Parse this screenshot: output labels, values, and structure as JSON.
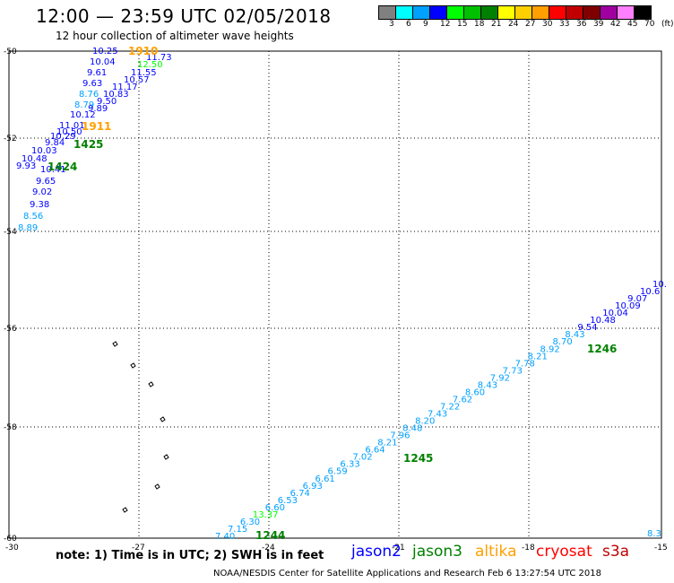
{
  "header": {
    "title": "12:00 — 23:59 UTC 02/05/2018",
    "subtitle": "12 hour collection of altimeter wave heights"
  },
  "legend": {
    "colors": [
      "#808080",
      "#00ffff",
      "#00a0ff",
      "#0000ff",
      "#00ff00",
      "#00c000",
      "#008000",
      "#ffff00",
      "#ffd000",
      "#ffa000",
      "#ff0000",
      "#c00000",
      "#800000",
      "#a000a0",
      "#ff80ff",
      "#000000"
    ],
    "labels": [
      "3",
      "6",
      "9",
      "12",
      "15",
      "18",
      "21",
      "24",
      "27",
      "30",
      "33",
      "36",
      "39",
      "42",
      "45",
      "70",
      "(ft)"
    ]
  },
  "axes": {
    "lat_labels": [
      "-50",
      "-52",
      "-54",
      "-56",
      "-58",
      "-60"
    ],
    "lon_labels": [
      "-30",
      "-27",
      "-24",
      "-21",
      "-18",
      "-15"
    ]
  },
  "tracks": {
    "northwest": [
      {
        "t": "10.25",
        "c": "#0000ff"
      },
      {
        "t": "10.04",
        "c": "#0000ff"
      },
      {
        "t": "9.61",
        "c": "#0000ff"
      },
      {
        "t": "9.63",
        "c": "#0000ff"
      },
      {
        "t": "8.76",
        "c": "#00a0ff"
      },
      {
        "t": "8.79",
        "c": "#00a0ff"
      },
      {
        "t": "10.12",
        "c": "#0000ff"
      },
      {
        "t": "11.01",
        "c": "#0000ff"
      },
      {
        "t": "10.50",
        "c": "#0000ff"
      },
      {
        "t": "10.29",
        "c": "#0000ff"
      },
      {
        "t": "9.84",
        "c": "#0000ff"
      },
      {
        "t": "10.03",
        "c": "#0000ff"
      },
      {
        "t": "10.48",
        "c": "#0000ff"
      },
      {
        "t": "9.93",
        "c": "#0000ff"
      },
      {
        "t": "10.41",
        "c": "#0000ff"
      },
      {
        "t": "9.65",
        "c": "#0000ff"
      },
      {
        "t": "9.02",
        "c": "#0000ff"
      },
      {
        "t": "9.38",
        "c": "#0000ff"
      },
      {
        "t": "8.56",
        "c": "#00a0ff"
      },
      {
        "t": "8.89",
        "c": "#00a0ff"
      }
    ],
    "northwest_right": [
      {
        "t": "11.73",
        "c": "#0000ff"
      },
      {
        "t": "12.50",
        "c": "#00ff00"
      },
      {
        "t": "11.55",
        "c": "#0000ff"
      },
      {
        "t": "10.57",
        "c": "#0000ff"
      },
      {
        "t": "11.17",
        "c": "#0000ff"
      },
      {
        "t": "10.83",
        "c": "#0000ff"
      },
      {
        "t": "9.50",
        "c": "#0000ff"
      },
      {
        "t": "9.89",
        "c": "#0000ff"
      }
    ],
    "southeast": [
      {
        "t": "7.40",
        "c": "#00a0ff"
      },
      {
        "t": "7.15",
        "c": "#00a0ff"
      },
      {
        "t": "6.30",
        "c": "#00a0ff"
      },
      {
        "t": "13.37",
        "c": "#00ff00"
      },
      {
        "t": "6.60",
        "c": "#00a0ff"
      },
      {
        "t": "6.53",
        "c": "#00a0ff"
      },
      {
        "t": "6.74",
        "c": "#00a0ff"
      },
      {
        "t": "6.93",
        "c": "#00a0ff"
      },
      {
        "t": "6.61",
        "c": "#00a0ff"
      },
      {
        "t": "6.59",
        "c": "#00a0ff"
      },
      {
        "t": "6.33",
        "c": "#00a0ff"
      },
      {
        "t": "7.02",
        "c": "#00a0ff"
      },
      {
        "t": "6.64",
        "c": "#00a0ff"
      },
      {
        "t": "8.21",
        "c": "#00a0ff"
      },
      {
        "t": "7.96",
        "c": "#00a0ff"
      },
      {
        "t": "8.48",
        "c": "#00a0ff"
      },
      {
        "t": "8.20",
        "c": "#00a0ff"
      },
      {
        "t": "7.43",
        "c": "#00a0ff"
      },
      {
        "t": "7.22",
        "c": "#00a0ff"
      },
      {
        "t": "7.62",
        "c": "#00a0ff"
      },
      {
        "t": "8.60",
        "c": "#00a0ff"
      },
      {
        "t": "8.43",
        "c": "#00a0ff"
      },
      {
        "t": "7.92",
        "c": "#00a0ff"
      },
      {
        "t": "7.73",
        "c": "#00a0ff"
      },
      {
        "t": "7.78",
        "c": "#00a0ff"
      },
      {
        "t": "8.21",
        "c": "#00a0ff"
      },
      {
        "t": "8.92",
        "c": "#00a0ff"
      },
      {
        "t": "8.70",
        "c": "#00a0ff"
      },
      {
        "t": "8.43",
        "c": "#00a0ff"
      },
      {
        "t": "9.54",
        "c": "#0000ff"
      },
      {
        "t": "10.48",
        "c": "#0000ff"
      },
      {
        "t": "10.04",
        "c": "#0000ff"
      },
      {
        "t": "10.09",
        "c": "#0000ff"
      },
      {
        "t": "9.07",
        "c": "#0000ff"
      },
      {
        "t": "10.6",
        "c": "#0000ff"
      },
      {
        "t": "10.",
        "c": "#0000ff"
      }
    ],
    "east_edge": {
      "t": "8.3",
      "c": "#00a0ff"
    },
    "times": [
      {
        "t": "1910",
        "c": "#ffa000"
      },
      {
        "t": "1911",
        "c": "#ffa000"
      },
      {
        "t": "1425",
        "c": "#008000"
      },
      {
        "t": "1424",
        "c": "#008000"
      },
      {
        "t": "1246",
        "c": "#008000"
      },
      {
        "t": "1245",
        "c": "#008000"
      },
      {
        "t": "1244",
        "c": "#008000"
      }
    ]
  },
  "footer": {
    "note": "note:  1) Time is in UTC;  2) SWH is in feet",
    "satellites": [
      {
        "name": "jason2",
        "color": "#0000ff"
      },
      {
        "name": "jason3",
        "color": "#008000"
      },
      {
        "name": "altika",
        "color": "#ffa000"
      },
      {
        "name": "cryosat",
        "color": "#ff0000"
      },
      {
        "name": "s3a",
        "color": "#c00000"
      }
    ],
    "credit": "NOAA/NESDIS Center for Satellite Applications and Research    Feb  6 13:27:54 UTC 2018"
  }
}
